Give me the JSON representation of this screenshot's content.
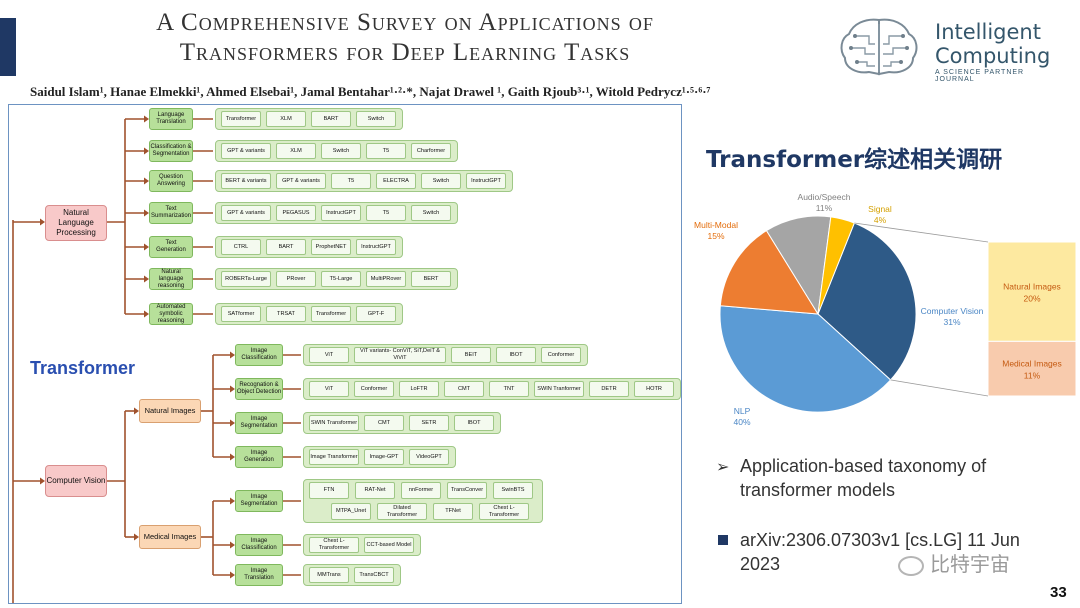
{
  "title": {
    "line1": "A Comprehensive Survey on Applications of",
    "line2": "Transformers for Deep Learning Tasks"
  },
  "authors": "Saidul Islam¹, Hanae Elmekki¹, Ahmed Elsebai¹, Jamal Bentahar¹·²·*, Najat Drawel ¹, Gaith Rjoub³·¹, Witold Pedrycz¹·⁵·⁶·⁷",
  "logo": {
    "line1": "Intelligent",
    "line2": "Computing",
    "sub": "A SCIENCE PARTNER JOURNAL"
  },
  "taxonomy": {
    "root_label": "Transformer",
    "nlp": {
      "label": "Natural Language Processing",
      "tasks": [
        {
          "label": "Language Translation",
          "models": [
            "Transformer",
            "XLM",
            "BART",
            "Switch"
          ]
        },
        {
          "label": "Classification & Segmentation",
          "models": [
            "GPT & variants",
            "XLM",
            "Switch",
            "T5",
            "Charformer"
          ]
        },
        {
          "label": "Question Answering",
          "models": [
            "BERT & variants",
            "GPT & variants",
            "T5",
            "ELECTRA",
            "Switch",
            "InstructGPT"
          ]
        },
        {
          "label": "Text Summarization",
          "models": [
            "GPT & variants",
            "PEGASUS",
            "InstructGPT",
            "T5",
            "Switch"
          ]
        },
        {
          "label": "Text Generation",
          "models": [
            "CTRL",
            "BART",
            "ProphetNET",
            "InstructGPT"
          ]
        },
        {
          "label": "Natural language reasoning",
          "models": [
            "ROBERTa-Large",
            "PRover",
            "T5-Large",
            "MultiPRover",
            "BERT"
          ]
        },
        {
          "label": "Automated symbolic reasoning",
          "models": [
            "SATformer",
            "TRSAT",
            "Transformer",
            "GPT-F"
          ]
        }
      ]
    },
    "cv": {
      "label": "Computer Vision",
      "natural": {
        "label": "Natural Images",
        "tasks": [
          {
            "label": "Image Classification",
            "models": [
              "ViT",
              "ViT variants- ConViT, SiT,DeiT & ViViT",
              "BEIT",
              "IBOT",
              "Conformer"
            ]
          },
          {
            "label": "Recognation & Object Detection",
            "models": [
              "ViT",
              "Conformer",
              "LoFTR",
              "CMT",
              "TNT",
              "SWIN Tranformer",
              "DETR",
              "HOTR"
            ]
          },
          {
            "label": "Image Segmentation",
            "models": [
              "SWIN Transformer",
              "CMT",
              "SETR",
              "IBOT"
            ]
          },
          {
            "label": "Image Generation",
            "models": [
              "Image Transformer",
              "Image-GPT",
              "VideoGPT"
            ]
          }
        ]
      },
      "medical": {
        "label": "Medical Images",
        "tasks": [
          {
            "label": "Image Segmentation",
            "models": [
              "FTN",
              "RAT-Net",
              "nnFormer",
              "TransConver",
              "SwinBTS",
              "MTPA_Unet",
              "Dilated Transformer",
              "TFNet",
              "Chest L-Transformer"
            ]
          },
          {
            "label": "Image Classification",
            "models": [
              "Chest L-Transformer",
              "CCT-based Model"
            ]
          },
          {
            "label": "Image Translation",
            "models": [
              "MMTrans",
              "TransCBCT"
            ]
          }
        ]
      }
    }
  },
  "chart_title": "Transformer综述相关调研",
  "chart_data": {
    "type": "pie",
    "title": "Transformer综述相关调研",
    "slices": [
      {
        "label": "Computer Vision",
        "value": 31,
        "pct_label": "31%",
        "color": "#2e5a87"
      },
      {
        "label": "NLP",
        "value": 40,
        "pct_label": "40%",
        "color": "#5b9bd5"
      },
      {
        "label": "Multi-Modal",
        "value": 15,
        "pct_label": "15%",
        "color": "#ed7d31"
      },
      {
        "label": "Audio/Speech",
        "value": 11,
        "pct_label": "11%",
        "color": "#a5a5a5"
      },
      {
        "label": "Signal",
        "value": 4,
        "pct_label": "4%",
        "color": "#ffc000"
      }
    ],
    "breakdown_of": "Computer Vision",
    "breakdown": [
      {
        "label": "Natural Images",
        "value": 20,
        "pct_label": "20%",
        "color": "#fde9a0"
      },
      {
        "label": "Medical Images",
        "value": 11,
        "pct_label": "11%",
        "color": "#f8cbad"
      }
    ],
    "label_colors": {
      "Computer Vision": "#4a86c5",
      "NLP": "#4a86c5",
      "Multi-Modal": "#e36c0a",
      "Audio/Speech": "#808080",
      "Signal": "#d4a000",
      "Natural Images": "#c55a11",
      "Medical Images": "#c55a11"
    }
  },
  "bullets": {
    "b1": "Application-based taxonomy of transformer models",
    "b2": "arXiv:2306.07303v1 [cs.LG] 11 Jun 2023"
  },
  "watermark": "比特宇宙",
  "page_number": "33"
}
